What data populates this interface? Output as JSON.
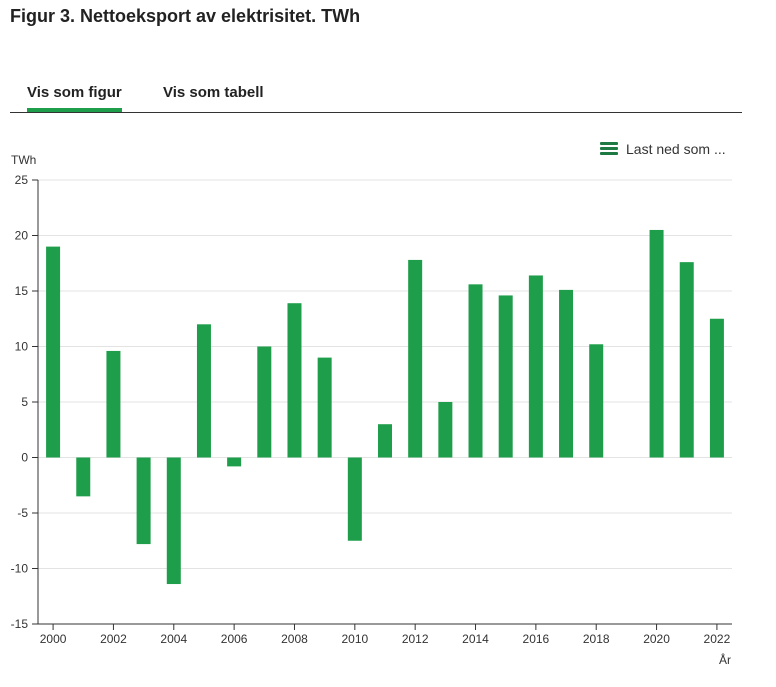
{
  "page": {
    "title": "Figur 3. Nettoeksport av elektrisitet. TWh"
  },
  "tabs": [
    {
      "label": "Vis som figur",
      "active": true
    },
    {
      "label": "Vis som tabell",
      "active": false
    }
  ],
  "download": {
    "label": "Last ned som ...",
    "icon": "hamburger-menu-icon"
  },
  "colors": {
    "bar": "#1e9e4a",
    "accent": "#1e9e4a",
    "grid": "#e3e3e3",
    "axis": "#333333",
    "text": "#333333"
  },
  "chart_data": {
    "type": "bar",
    "xlabel": "År",
    "ylabel": "TWh",
    "ylim": [
      -15,
      25
    ],
    "yticks": [
      -15,
      -10,
      -5,
      0,
      5,
      10,
      15,
      20,
      25
    ],
    "grid": true,
    "legend": "none",
    "categories": [
      "2000",
      "2001",
      "2002",
      "2003",
      "2004",
      "2005",
      "2006",
      "2007",
      "2008",
      "2009",
      "2010",
      "2011",
      "2012",
      "2013",
      "2014",
      "2015",
      "2016",
      "2017",
      "2018",
      "2019",
      "2020",
      "2021",
      "2022"
    ],
    "xtick_labels": [
      "2000",
      "2002",
      "2004",
      "2006",
      "2008",
      "2010",
      "2012",
      "2014",
      "2016",
      "2018",
      "2020",
      "2022"
    ],
    "values": [
      19.0,
      -3.5,
      9.6,
      -7.8,
      -11.4,
      12.0,
      -0.8,
      10.0,
      13.9,
      9.0,
      -7.5,
      3.0,
      17.8,
      5.0,
      15.6,
      14.6,
      16.4,
      15.1,
      10.2,
      0,
      20.5,
      17.6,
      12.5
    ]
  }
}
